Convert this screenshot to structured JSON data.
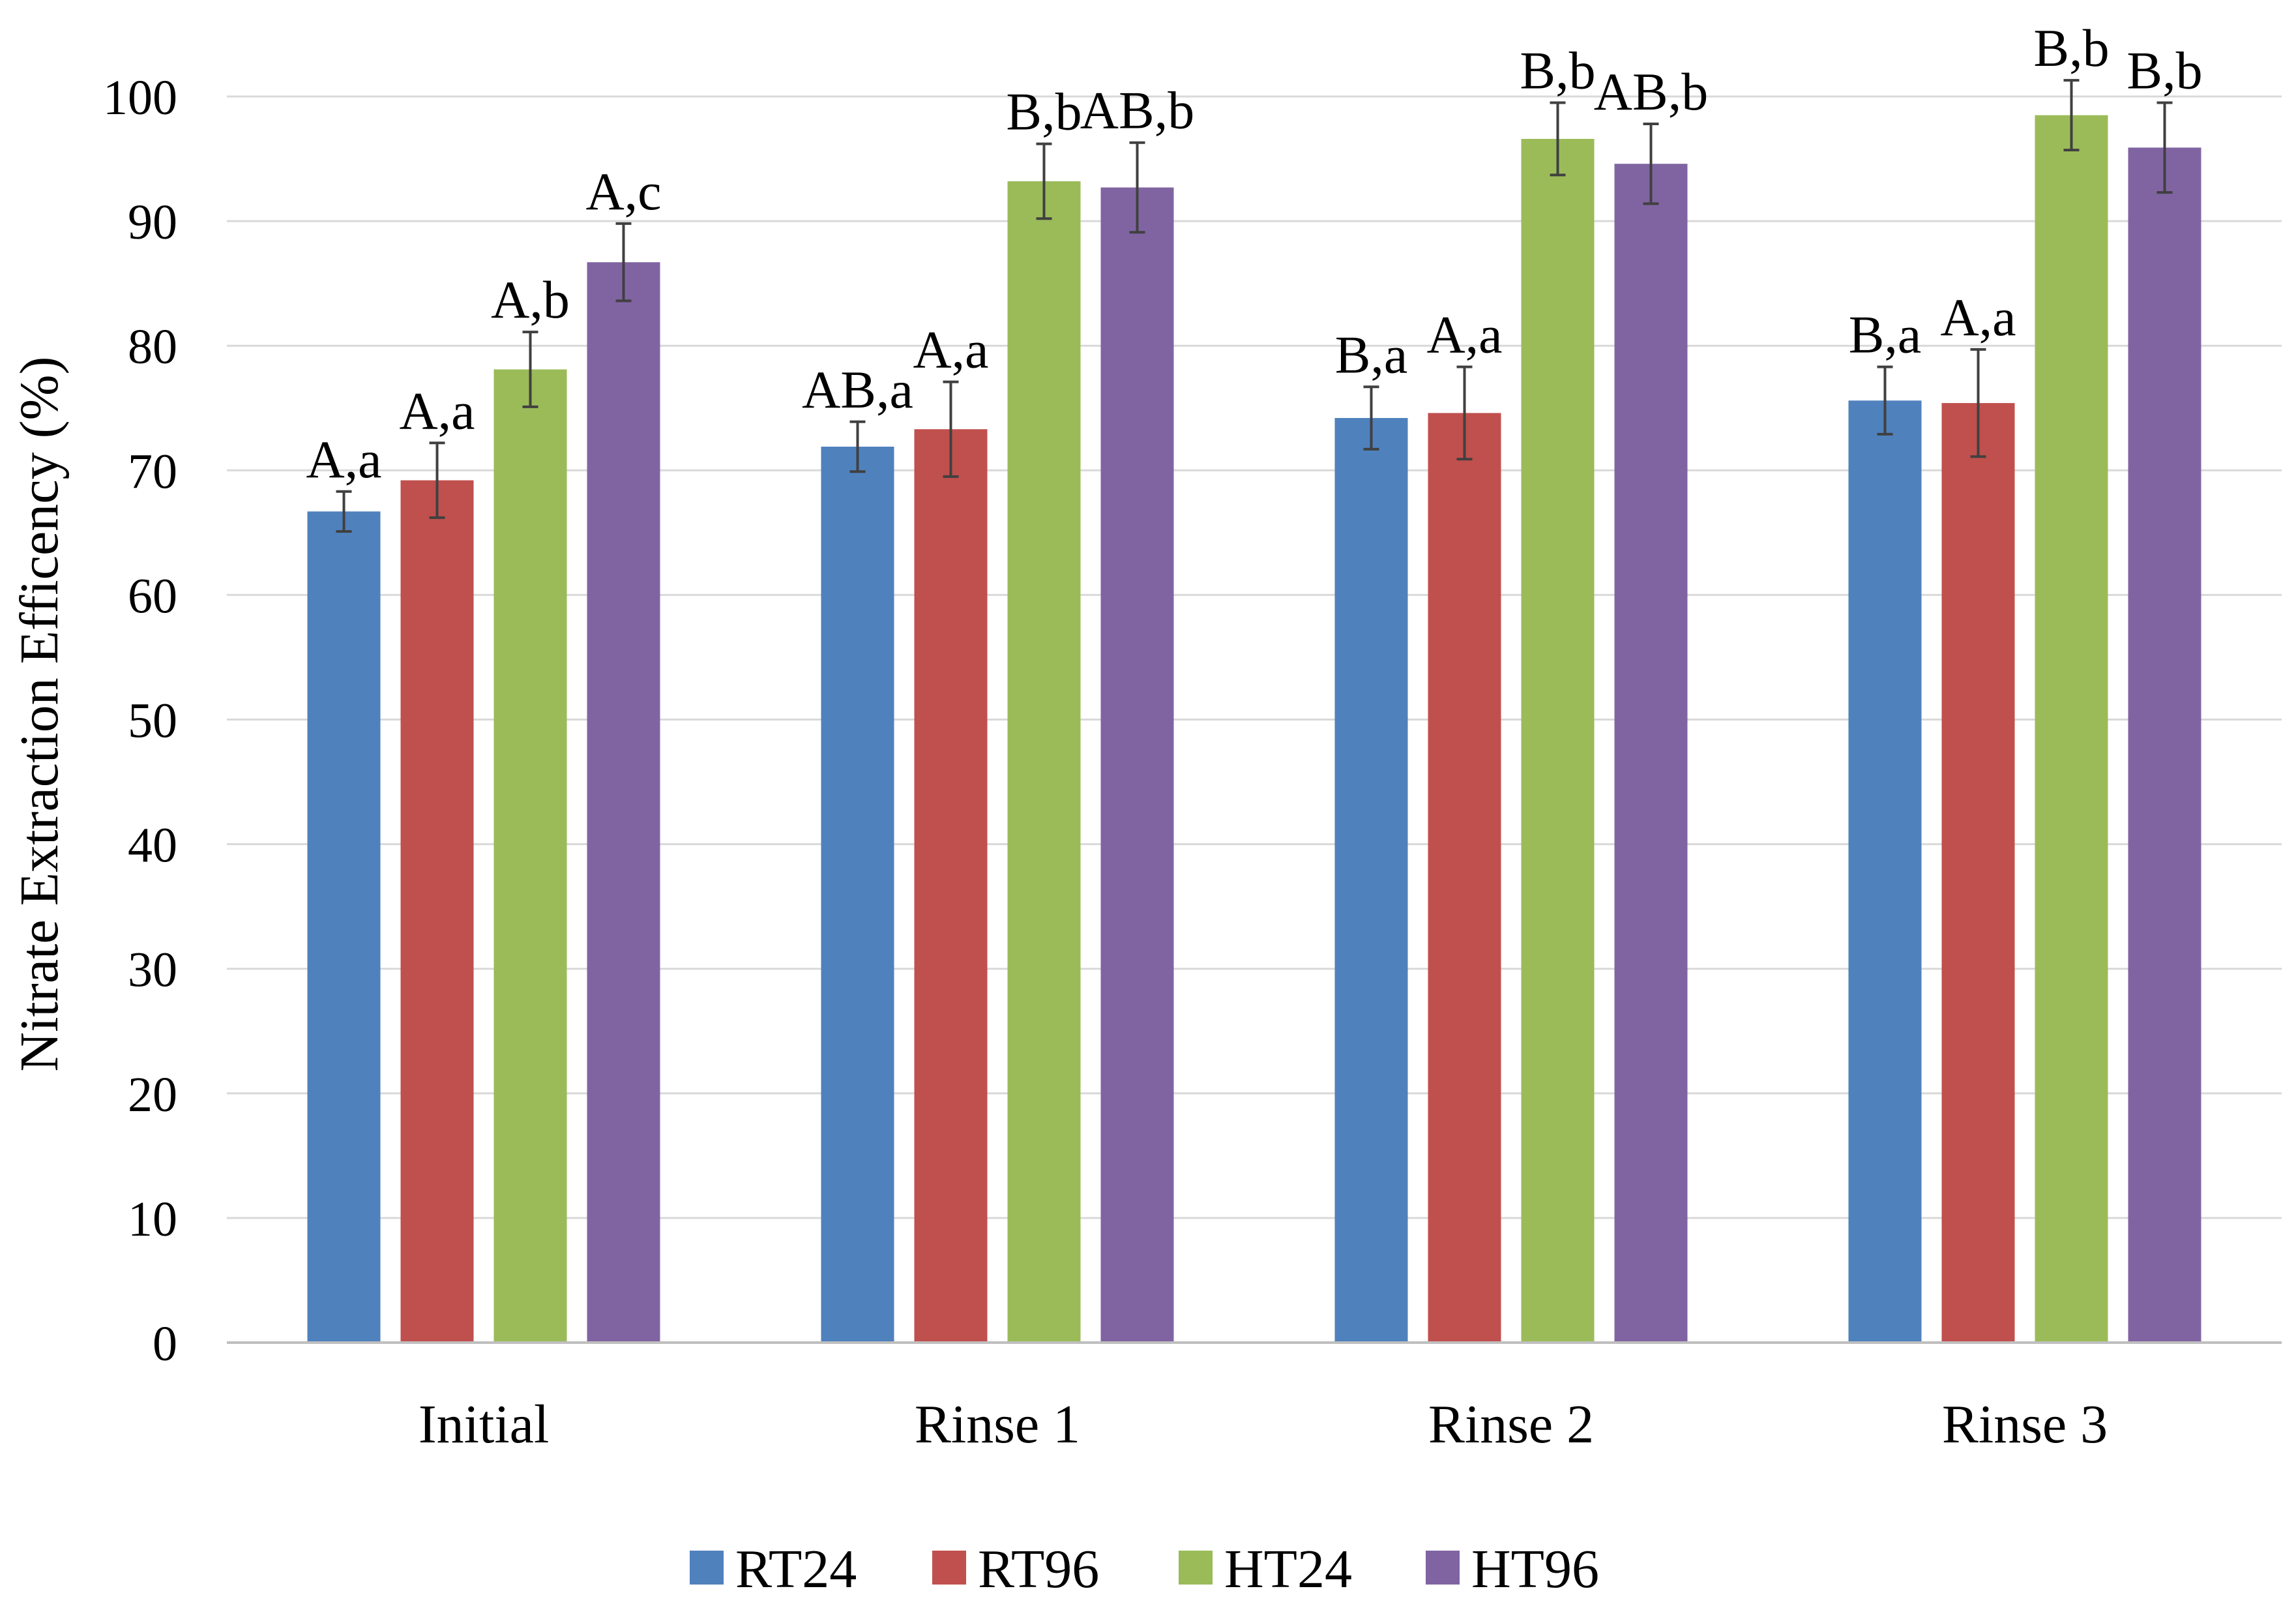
{
  "chart_data": {
    "type": "bar",
    "title": "",
    "xlabel": "",
    "ylabel": "Nitrate Extraction Efficency (%)",
    "ylim": [
      0,
      100
    ],
    "yticks": [
      0,
      10,
      20,
      30,
      40,
      50,
      60,
      70,
      80,
      90,
      100
    ],
    "grid": true,
    "legend_position": "bottom",
    "categories": [
      "Initial",
      "Rinse 1",
      "Rinse 2",
      "Rinse 3"
    ],
    "series": [
      {
        "name": "RT24",
        "color": "#4f81bd",
        "values": [
          66.7,
          71.9,
          74.2,
          75.6
        ],
        "errors": [
          1.6,
          2.0,
          2.5,
          2.7
        ],
        "labels": [
          "A,a",
          "AB,a",
          "B,a",
          "B,a"
        ]
      },
      {
        "name": "RT96",
        "color": "#c0504d",
        "values": [
          69.2,
          73.3,
          74.6,
          75.4
        ],
        "errors": [
          3.0,
          3.8,
          3.7,
          4.3
        ],
        "labels": [
          "A,a",
          "A,a",
          "A,a",
          "A,a"
        ]
      },
      {
        "name": "HT24",
        "color": "#9bbb59",
        "values": [
          78.1,
          93.2,
          96.6,
          98.5
        ],
        "errors": [
          3.0,
          3.0,
          2.9,
          2.8
        ],
        "labels": [
          "A,b",
          "B,b",
          "B,b",
          "B,b"
        ]
      },
      {
        "name": "HT96",
        "color": "#8064a2",
        "values": [
          86.7,
          92.7,
          94.6,
          95.9
        ],
        "errors": [
          3.1,
          3.6,
          3.2,
          3.6
        ],
        "labels": [
          "A,c",
          "AB,b",
          "AB,b",
          "B,b"
        ]
      }
    ]
  }
}
